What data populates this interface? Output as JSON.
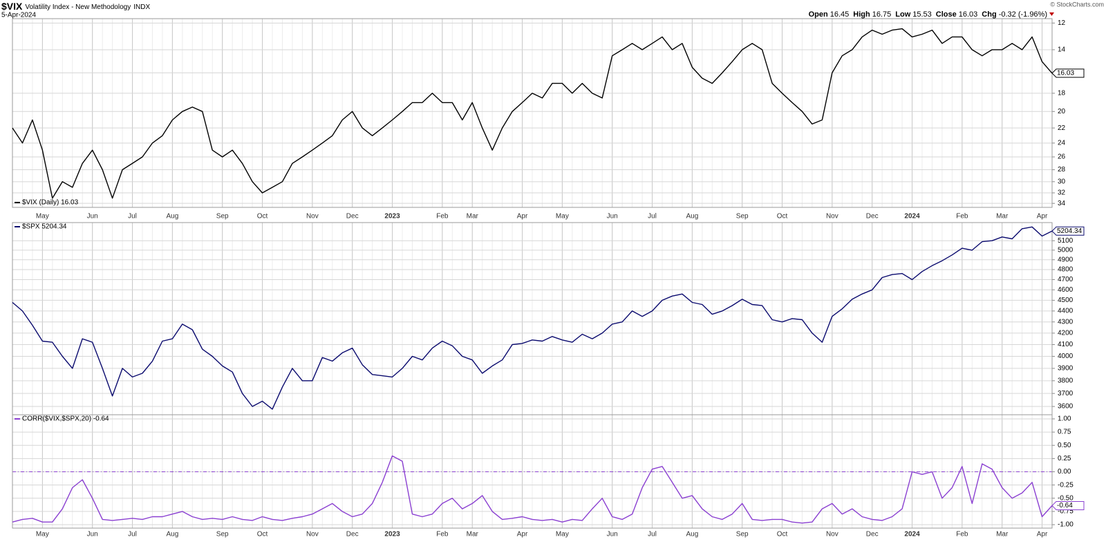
{
  "header": {
    "symbol": "$VIX",
    "name": "Volatility Index - New Methodology",
    "exchange": "INDX",
    "date": "5-Apr-2024",
    "credit": "© StockCharts.com",
    "quote": [
      {
        "label": "Open",
        "value": "16.45"
      },
      {
        "label": "High",
        "value": "16.75"
      },
      {
        "label": "Low",
        "value": "15.53"
      },
      {
        "label": "Close",
        "value": "16.03"
      },
      {
        "label": "Chg",
        "value": "-0.32 (-1.96%)"
      }
    ]
  },
  "chart_data": [
    {
      "type": "line",
      "log_scale": true,
      "inverted": true,
      "grid": true,
      "legend": "lower left",
      "ylim": [
        11.7,
        34.8
      ],
      "yticks": [
        12,
        14,
        16,
        18,
        20,
        22,
        24,
        26,
        28,
        30,
        32,
        34
      ],
      "last_label": "16.03",
      "categories": [
        null,
        null,
        null,
        "May",
        null,
        null,
        null,
        null,
        "Jun",
        null,
        null,
        null,
        "Jul",
        null,
        null,
        null,
        "Aug",
        null,
        null,
        null,
        null,
        "Sep",
        null,
        null,
        null,
        "Oct",
        null,
        null,
        null,
        null,
        "Nov",
        null,
        null,
        null,
        "Dec",
        null,
        null,
        null,
        "2023",
        null,
        null,
        null,
        null,
        "Feb",
        null,
        null,
        "Mar",
        null,
        null,
        null,
        null,
        "Apr",
        null,
        null,
        null,
        "May",
        null,
        null,
        null,
        null,
        "Jun",
        null,
        null,
        null,
        "Jul",
        null,
        null,
        null,
        "Aug",
        null,
        null,
        null,
        null,
        "Sep",
        null,
        null,
        null,
        "Oct",
        null,
        null,
        null,
        null,
        "Nov",
        null,
        null,
        null,
        "Dec",
        null,
        null,
        null,
        "2024",
        null,
        null,
        null,
        null,
        "Feb",
        null,
        null,
        null,
        "Mar",
        null,
        null,
        null,
        "Apr",
        null
      ],
      "series": [
        {
          "name": "$VIX (Daily) 16.03",
          "color": "#000000",
          "values": [
            22,
            24,
            21,
            25,
            33,
            30,
            31,
            27,
            25,
            28,
            33,
            28,
            27,
            26,
            24,
            23,
            21,
            20,
            19.5,
            20,
            25,
            26,
            25,
            27,
            30,
            32,
            31,
            30,
            27,
            26,
            25,
            24,
            23,
            21,
            20,
            22,
            23,
            22,
            21,
            20,
            19,
            19,
            18,
            19,
            19,
            21,
            19,
            22,
            25,
            22,
            20,
            19,
            18,
            18.5,
            17,
            17,
            18,
            17,
            18,
            18.5,
            14.5,
            14,
            13.5,
            14,
            13.5,
            13,
            14,
            13.5,
            15.5,
            16.5,
            17,
            16,
            15,
            14,
            13.5,
            14,
            17,
            18,
            19,
            20,
            21.5,
            21,
            16,
            14.5,
            14,
            13,
            12.5,
            12.8,
            12.5,
            12.4,
            13,
            12.8,
            12.5,
            13.5,
            13,
            13,
            14,
            14.5,
            14,
            14,
            13.5,
            14,
            13,
            15,
            16.03
          ]
        }
      ]
    },
    {
      "type": "line",
      "log_scale": true,
      "inverted": false,
      "grid": true,
      "legend": "upper left",
      "ylim": [
        3538,
        5298
      ],
      "yticks": [
        3600,
        3700,
        3800,
        3900,
        4000,
        4100,
        4200,
        4300,
        4400,
        4500,
        4600,
        4700,
        4800,
        4900,
        5000,
        5100
      ],
      "last_label": "5204.34",
      "series": [
        {
          "name": "$SPX 5204.34",
          "color": "#0a0a6e",
          "values": [
            4480,
            4400,
            4270,
            4130,
            4120,
            4000,
            3900,
            4150,
            4120,
            3900,
            3680,
            3900,
            3830,
            3860,
            3960,
            4130,
            4150,
            4280,
            4230,
            4060,
            4000,
            3920,
            3870,
            3700,
            3600,
            3640,
            3580,
            3750,
            3900,
            3800,
            3800,
            3990,
            3960,
            4030,
            4070,
            3930,
            3850,
            3840,
            3830,
            3900,
            4000,
            3970,
            4070,
            4130,
            4090,
            4000,
            3970,
            3860,
            3920,
            3970,
            4100,
            4110,
            4140,
            4130,
            4170,
            4140,
            4120,
            4190,
            4150,
            4200,
            4280,
            4300,
            4400,
            4350,
            4400,
            4500,
            4540,
            4560,
            4480,
            4460,
            4370,
            4400,
            4450,
            4510,
            4460,
            4450,
            4320,
            4300,
            4330,
            4320,
            4200,
            4120,
            4350,
            4420,
            4510,
            4560,
            4600,
            4720,
            4750,
            4760,
            4700,
            4780,
            4840,
            4890,
            4950,
            5020,
            5000,
            5090,
            5100,
            5140,
            5120,
            5230,
            5250,
            5150,
            5204.34
          ]
        }
      ]
    },
    {
      "type": "line",
      "log_scale": false,
      "inverted": false,
      "grid": true,
      "legend": "upper left",
      "hline": 0,
      "ylim": [
        -1.065,
        1.078
      ],
      "yticks": [
        {
          "value": 1,
          "label": "1.00"
        },
        0.75,
        {
          "value": 0.5,
          "label": "0.50"
        },
        0.25,
        {
          "value": 0,
          "label": "0.00"
        },
        -0.25,
        {
          "value": -0.5,
          "label": "-0.50"
        },
        -0.75,
        {
          "value": -1,
          "label": "-1.00"
        }
      ],
      "last_label": "-0.64",
      "categories": [
        null,
        null,
        null,
        "May",
        null,
        null,
        null,
        null,
        "Jun",
        null,
        null,
        null,
        "Jul",
        null,
        null,
        null,
        "Aug",
        null,
        null,
        null,
        null,
        "Sep",
        null,
        null,
        null,
        "Oct",
        null,
        null,
        null,
        null,
        "Nov",
        null,
        null,
        null,
        "Dec",
        null,
        null,
        null,
        "2023",
        null,
        null,
        null,
        null,
        "Feb",
        null,
        null,
        "Mar",
        null,
        null,
        null,
        null,
        "Apr",
        null,
        null,
        null,
        "May",
        null,
        null,
        null,
        null,
        "Jun",
        null,
        null,
        null,
        "Jul",
        null,
        null,
        null,
        "Aug",
        null,
        null,
        null,
        null,
        "Sep",
        null,
        null,
        null,
        "Oct",
        null,
        null,
        null,
        null,
        "Nov",
        null,
        null,
        null,
        "Dec",
        null,
        null,
        null,
        "2024",
        null,
        null,
        null,
        null,
        "Feb",
        null,
        null,
        null,
        "Mar",
        null,
        null,
        null,
        "Apr",
        null
      ],
      "series": [
        {
          "name": "CORR($VIX,$SPX,20) -0.64",
          "color": "#8a3fd1",
          "values": [
            -0.95,
            -0.9,
            -0.88,
            -0.95,
            -0.95,
            -0.7,
            -0.3,
            -0.15,
            -0.5,
            -0.9,
            -0.92,
            -0.9,
            -0.88,
            -0.9,
            -0.85,
            -0.85,
            -0.8,
            -0.75,
            -0.85,
            -0.9,
            -0.88,
            -0.9,
            -0.85,
            -0.9,
            -0.92,
            -0.85,
            -0.9,
            -0.92,
            -0.88,
            -0.85,
            -0.8,
            -0.7,
            -0.6,
            -0.75,
            -0.85,
            -0.8,
            -0.6,
            -0.2,
            0.3,
            0.2,
            -0.8,
            -0.85,
            -0.8,
            -0.6,
            -0.5,
            -0.7,
            -0.6,
            -0.45,
            -0.75,
            -0.9,
            -0.88,
            -0.85,
            -0.9,
            -0.92,
            -0.9,
            -0.95,
            -0.9,
            -0.92,
            -0.7,
            -0.5,
            -0.85,
            -0.9,
            -0.8,
            -0.3,
            0.05,
            0.1,
            -0.2,
            -0.5,
            -0.45,
            -0.7,
            -0.85,
            -0.9,
            -0.8,
            -0.6,
            -0.9,
            -0.92,
            -0.9,
            -0.9,
            -0.95,
            -0.97,
            -0.95,
            -0.7,
            -0.6,
            -0.8,
            -0.7,
            -0.85,
            -0.9,
            -0.92,
            -0.85,
            -0.7,
            0,
            -0.05,
            0,
            -0.5,
            -0.3,
            0.1,
            -0.6,
            0.15,
            0.05,
            -0.3,
            -0.5,
            -0.4,
            -0.2,
            -0.85,
            -0.64
          ]
        }
      ]
    }
  ]
}
